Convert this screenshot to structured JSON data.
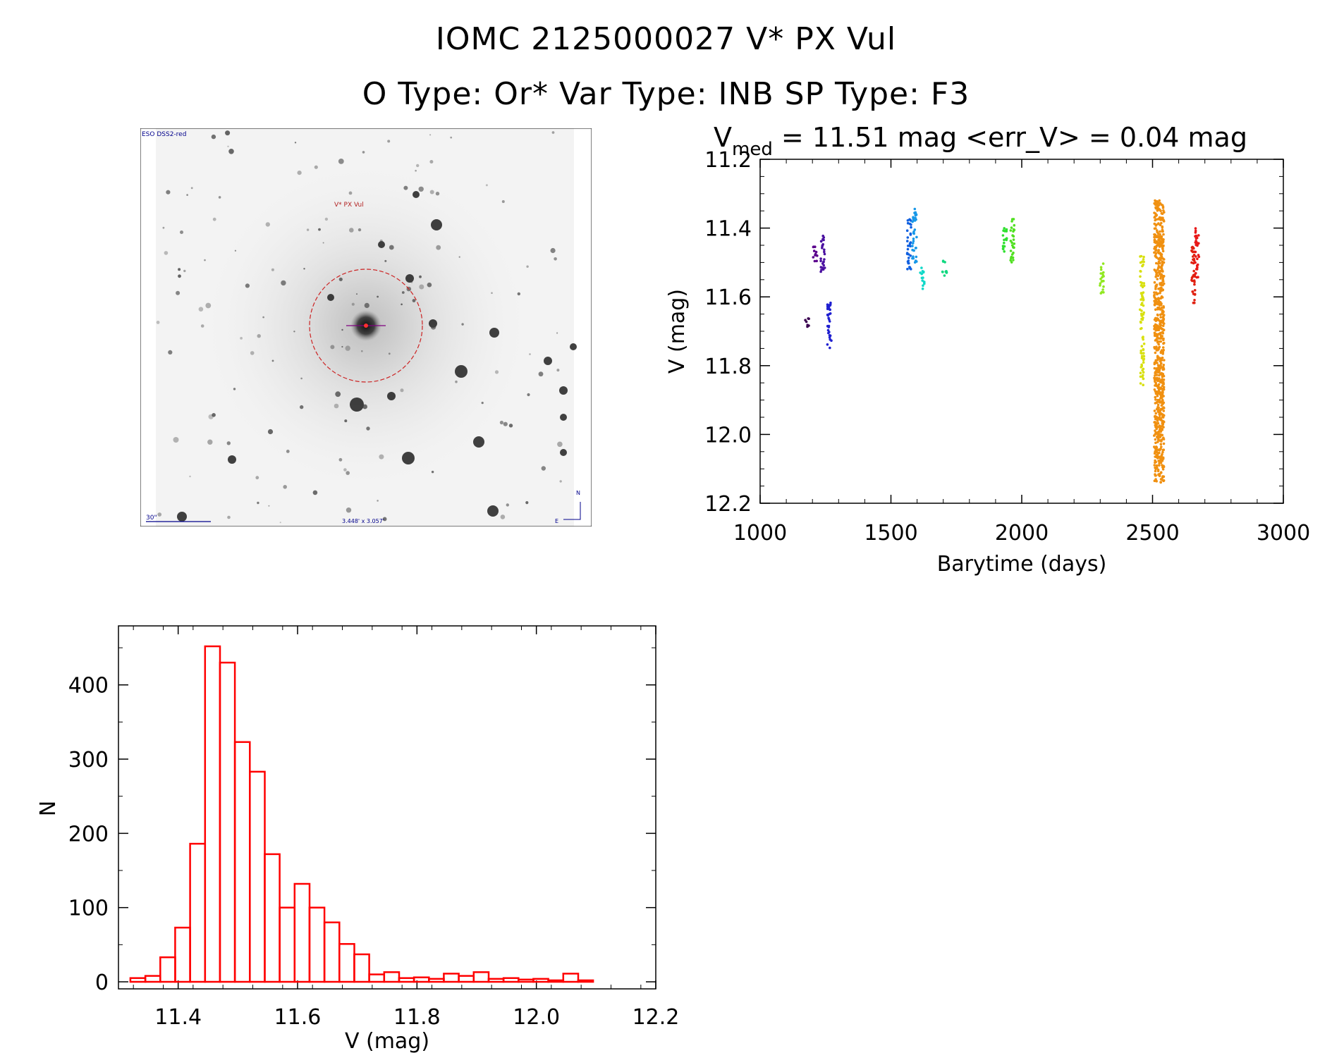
{
  "header": {
    "line1": "IOMC 2125000027    V* PX Vul",
    "line2": "O Type: Or*  Var Type: INB  SP Type: F3"
  },
  "finder": {
    "survey_label": "ESO DSS2-red",
    "target_label": "V* PX Vul",
    "scale_label": "30\"",
    "size_label": "3.448' x 3.057'",
    "north_label": "N",
    "east_label": "E"
  },
  "colors": {
    "histogram": "#ff0000",
    "aperture": "#cc2222",
    "finder_text": "#00008b"
  },
  "chart_data": [
    {
      "type": "scatter",
      "title_main": "V",
      "title_sub": "med",
      "title_rest": " = 11.51 mag <err_V> = 0.04 mag",
      "xlabel": "Barytime (days)",
      "ylabel": "V (mag)",
      "xlim": [
        1000,
        3000
      ],
      "ylim": [
        12.2,
        11.2
      ],
      "y_inverted": true,
      "xticks": [
        "1000",
        "1500",
        "2000",
        "2500",
        "3000"
      ],
      "yticks": [
        "11.2",
        "11.4",
        "11.6",
        "11.8",
        "12.0",
        "12.2"
      ],
      "groups": [
        {
          "x": 1180,
          "ymin": 11.66,
          "ymax": 11.69,
          "color": "#3a0050"
        },
        {
          "x": 1210,
          "ymin": 11.45,
          "ymax": 11.5,
          "color": "#5a008c"
        },
        {
          "x": 1240,
          "ymin": 11.41,
          "ymax": 11.53,
          "color": "#4a10a0"
        },
        {
          "x": 1265,
          "ymin": 11.61,
          "ymax": 11.75,
          "color": "#2020d0"
        },
        {
          "x": 1570,
          "ymin": 11.37,
          "ymax": 11.52,
          "color": "#1060e0"
        },
        {
          "x": 1590,
          "ymin": 11.34,
          "ymax": 11.5,
          "color": "#1898e8"
        },
        {
          "x": 1620,
          "ymin": 11.51,
          "ymax": 11.58,
          "color": "#10d8c8"
        },
        {
          "x": 1705,
          "ymin": 11.49,
          "ymax": 11.54,
          "color": "#10d880"
        },
        {
          "x": 1935,
          "ymin": 11.4,
          "ymax": 11.48,
          "color": "#30e030"
        },
        {
          "x": 1965,
          "ymin": 11.37,
          "ymax": 11.5,
          "color": "#50e020"
        },
        {
          "x": 2305,
          "ymin": 11.5,
          "ymax": 11.59,
          "color": "#90e820"
        },
        {
          "x": 2460,
          "ymin": 11.48,
          "ymax": 11.86,
          "color": "#d8e010"
        },
        {
          "x": 2525,
          "ymin": 11.32,
          "ymax": 12.14,
          "color": "#f09010"
        },
        {
          "x": 2655,
          "ymin": 11.45,
          "ymax": 11.62,
          "color": "#e02010"
        },
        {
          "x": 2670,
          "ymin": 11.4,
          "ymax": 11.55,
          "color": "#e81818"
        }
      ]
    },
    {
      "type": "bar",
      "xlabel": "V (mag)",
      "ylabel": "N",
      "xlim": [
        11.3,
        12.2
      ],
      "ylim": [
        0,
        470
      ],
      "xticks": [
        "11.4",
        "11.6",
        "11.8",
        "12.0",
        "12.2"
      ],
      "yticks": [
        "0",
        "100",
        "200",
        "300",
        "400"
      ],
      "bin_start": 11.32,
      "bin_width": 0.025,
      "values": [
        5,
        8,
        33,
        73,
        186,
        452,
        430,
        323,
        283,
        172,
        100,
        132,
        100,
        80,
        51,
        37,
        10,
        13,
        5,
        6,
        4,
        11,
        8,
        13,
        4,
        5,
        3,
        4,
        2,
        11,
        2
      ]
    }
  ]
}
